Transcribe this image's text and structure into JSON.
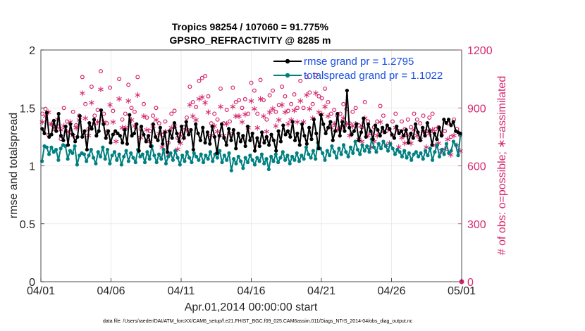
{
  "chart_data": {
    "type": "line",
    "title": "Tropics 98254 / 107060 = 91.775%",
    "subtitle": "GPSRO_REFRACTIVITY @ 8285 m",
    "xlabel": "Apr.01,2014 00:00:00 start",
    "ylabel": "rmse and totalspread",
    "y2label": "# of obs: o=possible; ∗=assimilated",
    "x_tick_labels": [
      "04/01",
      "04/06",
      "04/11",
      "04/16",
      "04/21",
      "04/26",
      "05/01"
    ],
    "xlim": [
      0,
      30
    ],
    "ylim": [
      0,
      2
    ],
    "y_ticks": [
      0,
      0.5,
      1,
      1.5,
      2
    ],
    "y_tick_labels": [
      "0",
      "0.5",
      "1",
      "1.5",
      "2"
    ],
    "y2lim": [
      0,
      1200
    ],
    "y2_ticks": [
      0,
      300,
      600,
      900,
      1200
    ],
    "y2_tick_labels": [
      "0",
      "300",
      "600",
      "900",
      "1200"
    ],
    "legend": [
      {
        "key": "rmse",
        "label": "rmse grand pr = 1.2795",
        "color": "#000000"
      },
      {
        "key": "spread",
        "label": "totalspread grand pr = 1.1022",
        "color": "#008080"
      }
    ],
    "legend_text_color": "#1a4fe0",
    "right_axis_color": "#d62870",
    "footnote": "data file: /Users/raeder/DAI/ATM_forcXX/CAM6_setup/f.e21.FHIST_BGC.f09_025.CAM6assim.011/Diags_NTrS_2014-04/obs_diag_output.nc",
    "series": [
      {
        "name": "rmse",
        "color": "#000000",
        "values": [
          1.32,
          1.28,
          1.46,
          1.25,
          1.27,
          1.39,
          1.3,
          1.45,
          1.26,
          1.22,
          1.34,
          1.18,
          1.36,
          1.27,
          1.21,
          1.25,
          1.43,
          1.25,
          1.3,
          1.14,
          1.37,
          1.32,
          1.4,
          1.26,
          1.3,
          1.48,
          1.36,
          1.24,
          1.3,
          1.2,
          1.27,
          1.3,
          1.28,
          1.26,
          1.2,
          1.31,
          1.19,
          1.44,
          1.26,
          1.28,
          1.36,
          1.13,
          1.34,
          1.27,
          1.21,
          1.26,
          1.17,
          1.36,
          1.25,
          1.22,
          1.33,
          1.19,
          1.29,
          1.12,
          1.3,
          1.24,
          1.37,
          1.28,
          1.21,
          1.34,
          1.24,
          1.38,
          1.27,
          1.31,
          1.14,
          1.36,
          1.28,
          1.22,
          1.33,
          1.2,
          1.29,
          1.19,
          1.34,
          1.25,
          1.11,
          1.26,
          1.36,
          1.24,
          1.18,
          1.32,
          1.22,
          1.31,
          1.15,
          1.28,
          1.21,
          1.26,
          1.17,
          1.34,
          1.22,
          1.28,
          1.13,
          1.24,
          1.17,
          1.29,
          1.2,
          1.25,
          1.18,
          1.27,
          1.22,
          1.13,
          1.3,
          1.21,
          1.35,
          1.27,
          1.3,
          1.25,
          1.38,
          1.22,
          1.28,
          1.18,
          1.36,
          1.26,
          1.19,
          1.33,
          1.23,
          1.4,
          1.28,
          1.15,
          1.44,
          1.36,
          1.28,
          1.33,
          1.38,
          1.22,
          1.3,
          1.45,
          1.26,
          1.38,
          1.3,
          1.65,
          1.33,
          1.27,
          1.3,
          1.36,
          1.22,
          1.29,
          1.41,
          1.25,
          1.36,
          1.3,
          1.23,
          1.35,
          1.31,
          1.26,
          1.33,
          1.29,
          1.35,
          1.32,
          1.27,
          1.24,
          1.34,
          1.28,
          1.3,
          1.26,
          1.31,
          1.2,
          1.28,
          1.24,
          1.36,
          1.29,
          1.22,
          1.33,
          1.26,
          1.37,
          1.3,
          1.18,
          1.28,
          1.23,
          1.33,
          1.26,
          1.4,
          1.37,
          1.4,
          1.35,
          1.38,
          1.3,
          1.29,
          1.28
        ]
      },
      {
        "name": "totalspread",
        "color": "#008080",
        "values": [
          1.04,
          1.17,
          1.16,
          1.1,
          1.16,
          1.12,
          1.14,
          1.05,
          1.15,
          1.18,
          1.17,
          1.06,
          1.13,
          1.11,
          1.17,
          1.01,
          1.09,
          1.11,
          1.1,
          1.04,
          1.09,
          1.14,
          1.07,
          1.02,
          1.12,
          1.08,
          1.16,
          1.06,
          1.14,
          1.02,
          1.09,
          1.12,
          1.05,
          1.1,
          1.01,
          1.08,
          1.13,
          1.04,
          1.11,
          1.07,
          1.03,
          1.14,
          1.08,
          1.1,
          1.03,
          1.12,
          1.06,
          1.17,
          1.09,
          1.03,
          1.1,
          1.06,
          1.14,
          1.02,
          1.08,
          1.11,
          1.05,
          1.13,
          1.07,
          1.01,
          1.09,
          1.04,
          1.12,
          1.07,
          1.03,
          1.11,
          1.08,
          1.05,
          1.1,
          1.03,
          1.09,
          1.06,
          1.12,
          1.04,
          1.1,
          1.07,
          1.13,
          1.03,
          1.09,
          1.05,
          1.11,
          0.96,
          1.06,
          1.02,
          1.08,
          1.04,
          0.98,
          1.07,
          1.03,
          1.09,
          1.05,
          1.01,
          1.07,
          1.04,
          1.1,
          1.02,
          1.06,
          0.97,
          1.08,
          1.04,
          1.1,
          1.03,
          1.07,
          1.12,
          1.05,
          1.09,
          1.02,
          1.08,
          1.05,
          1.11,
          1.04,
          1.09,
          1.06,
          1.16,
          1.1,
          1.07,
          1.13,
          1.06,
          1.2,
          1.15,
          1.11,
          1.05,
          1.13,
          1.09,
          1.17,
          1.12,
          1.07,
          1.15,
          1.1,
          1.18,
          1.12,
          1.08,
          1.16,
          1.11,
          1.21,
          1.14,
          1.1,
          1.18,
          1.13,
          1.17,
          1.12,
          1.23,
          1.16,
          1.12,
          1.19,
          1.15,
          1.21,
          1.17,
          1.13,
          1.19,
          1.15,
          1.1,
          1.14,
          1.12,
          1.08,
          1.13,
          1.07,
          1.11,
          1.05,
          1.1,
          1.12,
          1.08,
          1.11,
          1.06,
          1.13,
          1.09,
          1.15,
          1.05,
          1.12,
          1.18,
          1.08,
          1.14,
          1.1,
          1.19,
          1.11,
          1.13,
          1.21,
          1.18,
          1.09,
          1.27
        ]
      },
      {
        "name": "possible",
        "axis": "right",
        "marker": "circle",
        "color": "#d62870",
        "values": [
          870,
          895,
          760,
          815,
          790,
          805,
          740,
          900,
          830,
          775,
          880,
          810,
          860,
          1060,
          920,
          790,
          1010,
          860,
          890,
          1090,
          870,
          820,
          1005,
          885,
          770,
          1050,
          840,
          870,
          1020,
          900,
          880,
          1060,
          790,
          920,
          850,
          780,
          860,
          900,
          820,
          760,
          830,
          720,
          870,
          885,
          745,
          765,
          800,
          850,
          1010,
          930,
          905,
          1040,
          1055,
          1065,
          960,
          820,
          870,
          840,
          1000,
          820,
          890,
          830,
          1005,
          930,
          940,
          900,
          945,
          870,
          1030,
          990,
          870,
          1045,
          940,
          840,
          965,
          990,
          880,
          915,
          1010,
          960,
          885,
          920,
          970,
          900,
          1040,
          900,
          1060,
          980,
          920,
          1070,
          960,
          950,
          1000,
          930,
          870,
          890,
          860,
          870,
          920,
          895,
          820,
          880,
          900,
          810,
          800,
          930,
          830,
          770,
          800,
          830,
          910,
          860,
          780,
          790,
          830,
          870,
          780,
          830,
          790,
          840,
          800,
          870,
          840,
          820,
          860,
          780,
          850,
          870,
          790,
          800,
          760,
          780,
          820,
          750,
          840,
          790,
          760
        ]
      },
      {
        "name": "assimilated",
        "axis": "right",
        "marker": "asterisk",
        "color": "#d62870",
        "values": [
          830,
          860,
          880,
          820,
          800,
          845,
          790,
          810,
          780,
          830,
          760,
          800,
          840,
          980,
          850,
          760,
          930,
          820,
          830,
          1000,
          830,
          780,
          920,
          830,
          730,
          950,
          800,
          800,
          940,
          840,
          810,
          970,
          750,
          860,
          790,
          730,
          810,
          840,
          770,
          700,
          780,
          660,
          800,
          810,
          690,
          720,
          750,
          790,
          920,
          860,
          840,
          950,
          960,
          930,
          880,
          760,
          810,
          780,
          910,
          760,
          820,
          770,
          910,
          860,
          860,
          830,
          870,
          800,
          940,
          900,
          800,
          950,
          860,
          780,
          880,
          900,
          810,
          840,
          920,
          880,
          820,
          840,
          890,
          830,
          940,
          830,
          970,
          900,
          850,
          980,
          880,
          870,
          910,
          860,
          800,
          820,
          790,
          800,
          850,
          820,
          760,
          810,
          820,
          740,
          730,
          850,
          760,
          700,
          730,
          760,
          830,
          780,
          710,
          720,
          760,
          800,
          700,
          750,
          720,
          760,
          720,
          790,
          760,
          740,
          780,
          700,
          770,
          790,
          710,
          720,
          680,
          690,
          740,
          660,
          760,
          710,
          680
        ]
      }
    ]
  }
}
